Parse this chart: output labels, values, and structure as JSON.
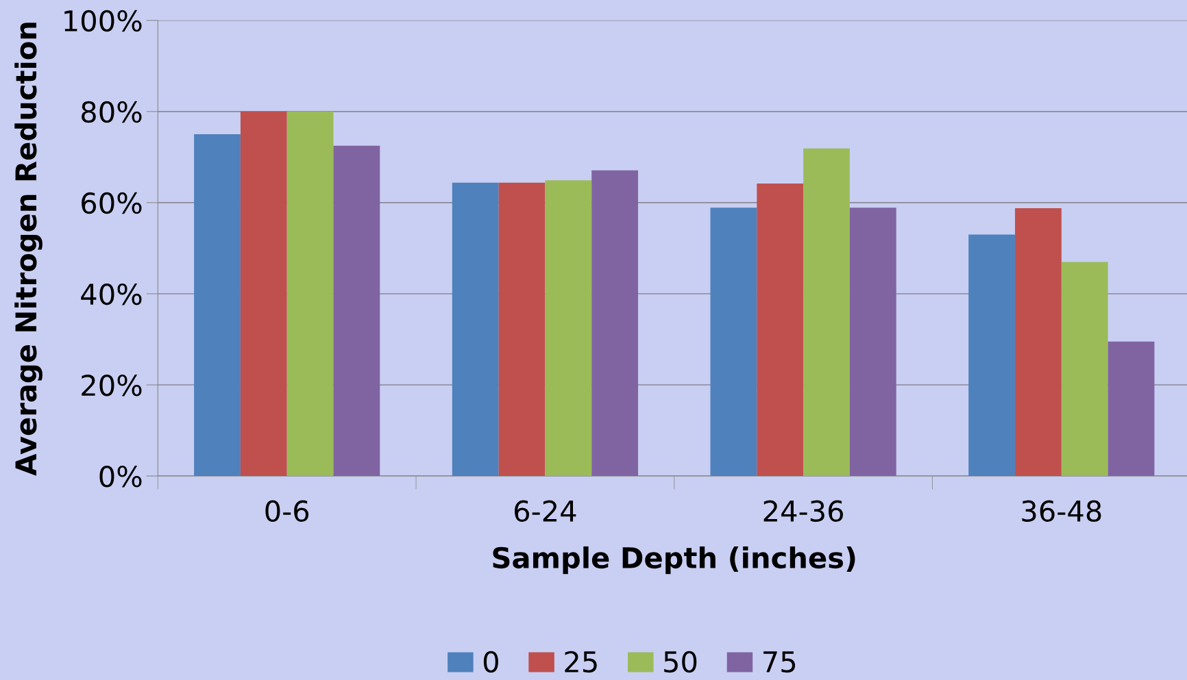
{
  "chart_data": {
    "type": "bar",
    "xlabel": "Sample Depth (inches)",
    "ylabel": "Average Nitrogen Reduction",
    "categories": [
      "0-6",
      "6-24",
      "24-36",
      "36-48"
    ],
    "series": [
      {
        "name": "0",
        "color": "#4f81bd",
        "values": [
          75,
          64.4,
          58.9,
          53
        ]
      },
      {
        "name": "25",
        "color": "#c0504d",
        "values": [
          80,
          64.4,
          64.2,
          58.8
        ]
      },
      {
        "name": "50",
        "color": "#9bbb59",
        "values": [
          80,
          64.9,
          71.9,
          47
        ]
      },
      {
        "name": "75",
        "color": "#8064a2",
        "values": [
          72.5,
          67.1,
          58.9,
          29.5
        ]
      }
    ],
    "ylim": [
      0,
      100
    ],
    "yticks": [
      {
        "value": 0,
        "label": "0%"
      },
      {
        "value": 20,
        "label": "20%"
      },
      {
        "value": 40,
        "label": "40%"
      },
      {
        "value": 60,
        "label": "60%"
      },
      {
        "value": 80,
        "label": "80%"
      },
      {
        "value": 100,
        "label": "100%"
      }
    ],
    "grid": "y",
    "legend": "bottom"
  }
}
